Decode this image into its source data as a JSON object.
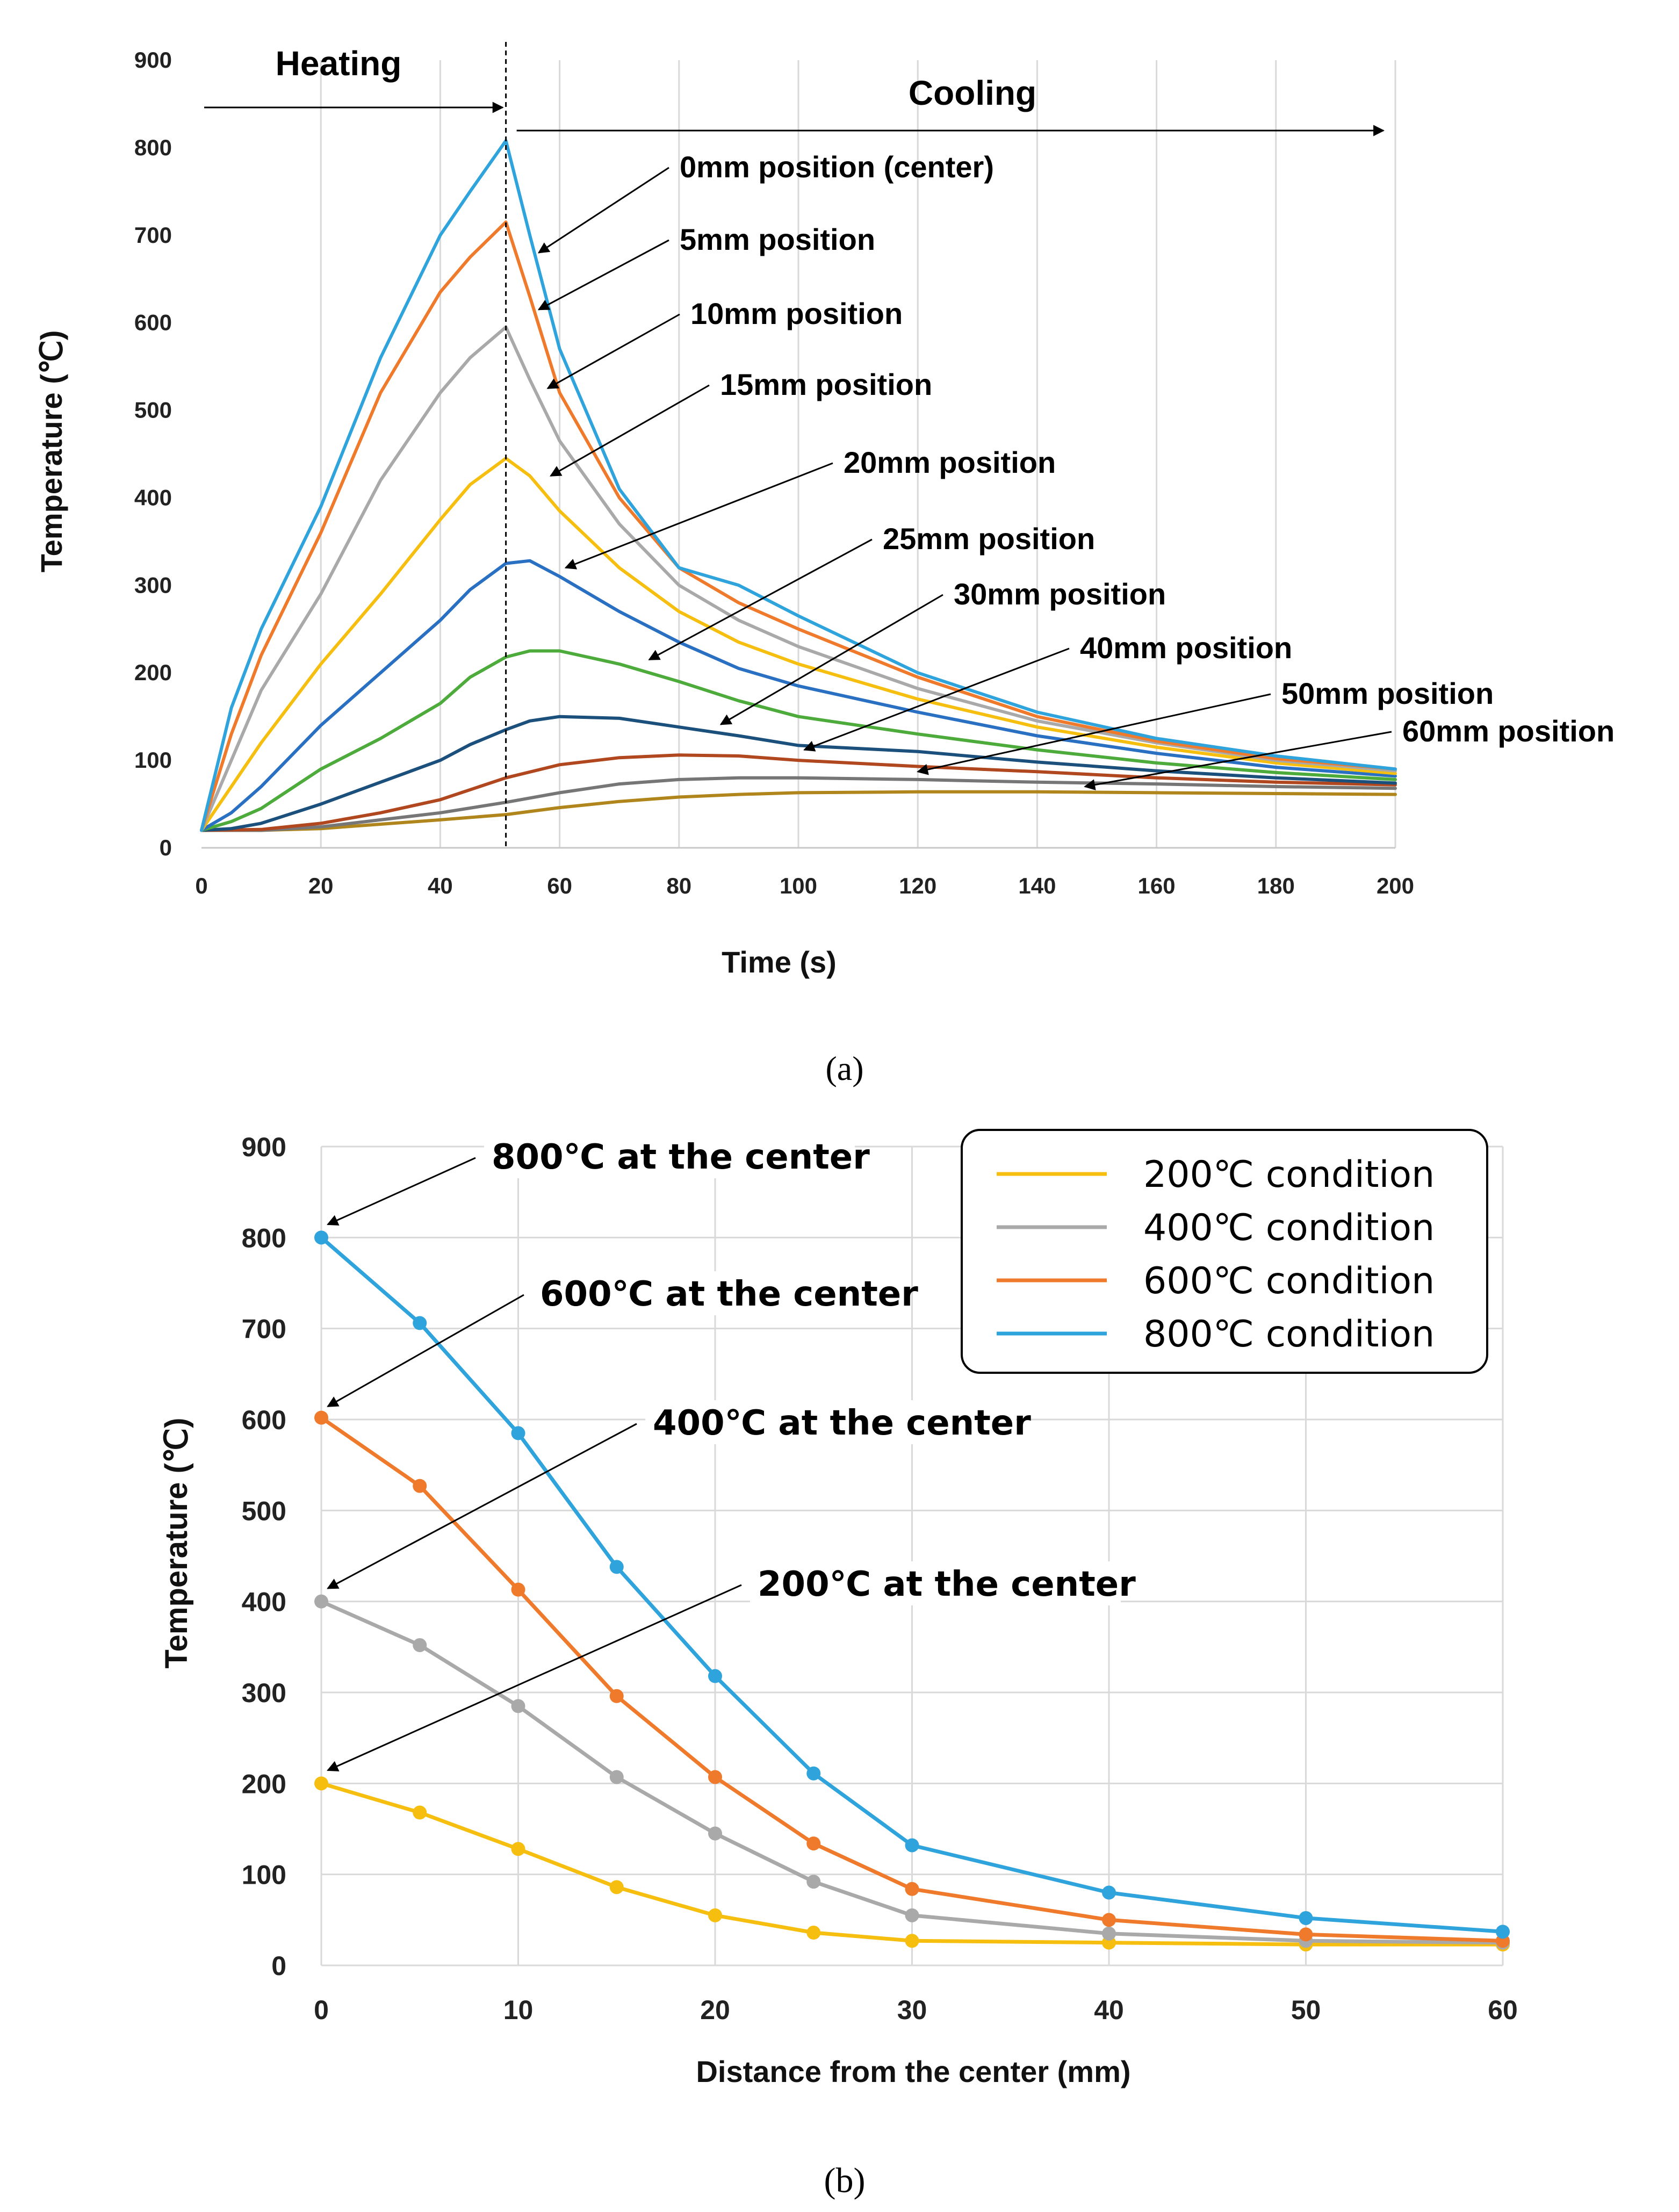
{
  "chart_data": [
    {
      "id": "a",
      "type": "line",
      "caption": "(a)",
      "title": "",
      "xlabel": "Time (s)",
      "ylabel": "Temperature (℃)",
      "xlim": [
        0,
        200
      ],
      "ylim": [
        0,
        900
      ],
      "xticks": [
        "0",
        "20",
        "40",
        "60",
        "80",
        "100",
        "120",
        "140",
        "160",
        "180",
        "200"
      ],
      "yticks": [
        "0",
        "100",
        "200",
        "300",
        "400",
        "500",
        "600",
        "700",
        "800",
        "900"
      ],
      "grid": "vertical",
      "phase_labels": {
        "heating": "Heating",
        "cooling": "Cooling",
        "switch_time": 51
      },
      "series": [
        {
          "name": "0mm position (center)",
          "color": "#2fa3dc",
          "x": [
            0,
            5,
            10,
            20,
            30,
            40,
            45,
            51,
            55,
            60,
            70,
            80,
            90,
            100,
            120,
            140,
            160,
            180,
            200
          ],
          "y": [
            20,
            160,
            250,
            390,
            560,
            700,
            750,
            808,
            700,
            570,
            410,
            320,
            300,
            265,
            200,
            155,
            125,
            105,
            90
          ]
        },
        {
          "name": "5mm position",
          "color": "#f07a2b",
          "x": [
            0,
            5,
            10,
            20,
            30,
            40,
            45,
            51,
            55,
            60,
            70,
            80,
            90,
            100,
            120,
            140,
            160,
            180,
            200
          ],
          "y": [
            20,
            130,
            220,
            360,
            520,
            635,
            675,
            715,
            630,
            520,
            400,
            320,
            280,
            250,
            195,
            150,
            122,
            102,
            90
          ]
        },
        {
          "name": "10mm position",
          "color": "#a9a9a9",
          "x": [
            0,
            5,
            10,
            20,
            30,
            40,
            45,
            51,
            55,
            60,
            70,
            80,
            90,
            100,
            120,
            140,
            160,
            180,
            200
          ],
          "y": [
            20,
            100,
            180,
            290,
            420,
            520,
            560,
            595,
            535,
            465,
            370,
            300,
            260,
            230,
            182,
            145,
            120,
            100,
            88
          ]
        },
        {
          "name": "15mm position",
          "color": "#f6bf10",
          "x": [
            0,
            5,
            10,
            20,
            30,
            40,
            45,
            51,
            55,
            60,
            70,
            80,
            90,
            100,
            120,
            140,
            160,
            180,
            200
          ],
          "y": [
            20,
            70,
            120,
            210,
            290,
            375,
            415,
            445,
            425,
            385,
            320,
            270,
            235,
            210,
            170,
            138,
            115,
            97,
            85
          ]
        },
        {
          "name": "20mm position",
          "color": "#2a70c2",
          "x": [
            0,
            5,
            10,
            20,
            30,
            40,
            45,
            51,
            55,
            60,
            70,
            80,
            90,
            100,
            120,
            140,
            160,
            180,
            200
          ],
          "y": [
            20,
            40,
            70,
            140,
            200,
            260,
            295,
            325,
            328,
            310,
            270,
            235,
            205,
            185,
            155,
            128,
            108,
            92,
            82
          ]
        },
        {
          "name": "25mm position",
          "color": "#4cab3b",
          "x": [
            0,
            5,
            10,
            20,
            30,
            40,
            45,
            51,
            55,
            60,
            70,
            80,
            90,
            100,
            120,
            140,
            160,
            180,
            200
          ],
          "y": [
            20,
            30,
            45,
            90,
            125,
            165,
            195,
            218,
            225,
            225,
            210,
            190,
            168,
            150,
            130,
            112,
            97,
            86,
            78
          ]
        },
        {
          "name": "30mm position",
          "color": "#1b4f7c",
          "x": [
            0,
            5,
            10,
            20,
            30,
            40,
            45,
            51,
            55,
            60,
            70,
            80,
            90,
            100,
            120,
            140,
            160,
            180,
            200
          ],
          "y": [
            20,
            22,
            28,
            50,
            75,
            100,
            118,
            135,
            145,
            150,
            148,
            138,
            128,
            117,
            110,
            98,
            88,
            80,
            74
          ]
        },
        {
          "name": "40mm position",
          "color": "#b0471e",
          "x": [
            0,
            10,
            20,
            30,
            40,
            51,
            60,
            70,
            80,
            90,
            100,
            120,
            140,
            160,
            180,
            200
          ],
          "y": [
            20,
            21,
            28,
            40,
            55,
            80,
            95,
            103,
            106,
            105,
            100,
            93,
            87,
            80,
            75,
            72
          ]
        },
        {
          "name": "50mm position",
          "color": "#767676",
          "x": [
            0,
            10,
            20,
            30,
            40,
            51,
            60,
            70,
            80,
            90,
            100,
            120,
            140,
            160,
            180,
            200
          ],
          "y": [
            20,
            20,
            24,
            32,
            40,
            52,
            63,
            73,
            78,
            80,
            80,
            78,
            75,
            73,
            70,
            68
          ]
        },
        {
          "name": "60mm position",
          "color": "#b0861c",
          "x": [
            0,
            10,
            20,
            30,
            40,
            51,
            60,
            70,
            80,
            90,
            100,
            120,
            140,
            160,
            180,
            200
          ],
          "y": [
            20,
            20,
            22,
            27,
            32,
            38,
            46,
            53,
            58,
            61,
            63,
            64,
            64,
            63,
            62,
            61
          ]
        }
      ]
    },
    {
      "id": "b",
      "type": "line",
      "caption": "(b)",
      "title": "",
      "xlabel": "Distance from the center (mm)",
      "ylabel": "Temperature (℃)",
      "xlim": [
        0,
        60
      ],
      "ylim": [
        0,
        900
      ],
      "xticks": [
        "0",
        "10",
        "20",
        "30",
        "40",
        "50",
        "60"
      ],
      "yticks": [
        "0",
        "100",
        "200",
        "300",
        "400",
        "500",
        "600",
        "700",
        "800",
        "900"
      ],
      "grid": "both",
      "legend": "top-right",
      "categories": [
        0,
        5,
        10,
        15,
        20,
        25,
        30,
        40,
        50,
        60
      ],
      "series": [
        {
          "name": "200℃ condition",
          "color": "#f6bf10",
          "values": [
            200,
            168,
            128,
            86,
            55,
            36,
            27,
            25,
            23,
            23
          ]
        },
        {
          "name": "400℃ condition",
          "color": "#a9a9a9",
          "values": [
            400,
            352,
            285,
            207,
            145,
            92,
            55,
            35,
            27,
            25
          ]
        },
        {
          "name": "600℃ condition",
          "color": "#f07a2b",
          "values": [
            602,
            527,
            413,
            296,
            207,
            134,
            84,
            50,
            34,
            27
          ]
        },
        {
          "name": "800℃ condition",
          "color": "#2fa3dc",
          "values": [
            800,
            706,
            585,
            438,
            318,
            211,
            132,
            80,
            52,
            37
          ]
        }
      ],
      "annotations": [
        {
          "text": "800℃ at the center",
          "target": 800
        },
        {
          "text": "600℃ at the center",
          "target": 600
        },
        {
          "text": "400℃ at the center",
          "target": 400
        },
        {
          "text": "200℃ at the center",
          "target": 200
        }
      ]
    }
  ]
}
